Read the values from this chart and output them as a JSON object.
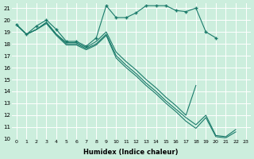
{
  "xlabel": "Humidex (Indice chaleur)",
  "bg_color": "#cceedd",
  "grid_color": "#ffffff",
  "line_color": "#1a7a6a",
  "xlim": [
    -0.5,
    23.5
  ],
  "ylim": [
    10,
    21.4
  ],
  "xticks": [
    0,
    1,
    2,
    3,
    4,
    5,
    6,
    7,
    8,
    9,
    10,
    11,
    12,
    13,
    14,
    15,
    16,
    17,
    18,
    19,
    20,
    21,
    22,
    23
  ],
  "yticks": [
    10,
    11,
    12,
    13,
    14,
    15,
    16,
    17,
    18,
    19,
    20,
    21
  ],
  "series": [
    {
      "x": [
        0,
        1,
        2,
        3,
        4,
        5,
        6,
        7,
        8,
        9,
        10,
        11,
        12,
        13,
        14,
        15,
        16,
        17,
        18,
        19,
        20,
        21,
        22,
        23
      ],
      "y": [
        19.6,
        18.8,
        19.5,
        20.0,
        19.2,
        18.2,
        18.2,
        17.8,
        18.5,
        21.2,
        20.2,
        20.2,
        20.6,
        21.2,
        21.2,
        21.2,
        20.8,
        20.7,
        21.0,
        19.0,
        18.5,
        null,
        null,
        null
      ],
      "marker": true
    },
    {
      "x": [
        0,
        1,
        2,
        3,
        4,
        5,
        6,
        7,
        8,
        9,
        10,
        11,
        12,
        13,
        14,
        15,
        16,
        17,
        18,
        19,
        20,
        21,
        22,
        23
      ],
      "y": [
        19.6,
        18.8,
        19.2,
        19.8,
        18.8,
        18.1,
        18.1,
        17.7,
        18.2,
        19.0,
        17.3,
        16.5,
        15.8,
        15.0,
        14.3,
        13.5,
        12.8,
        12.0,
        14.5,
        null,
        null,
        null,
        null,
        null
      ],
      "marker": false
    },
    {
      "x": [
        0,
        1,
        2,
        3,
        4,
        5,
        6,
        7,
        8,
        9,
        10,
        11,
        12,
        13,
        14,
        15,
        16,
        17,
        18,
        19,
        20,
        21,
        22,
        23
      ],
      "y": [
        19.6,
        18.8,
        19.2,
        19.8,
        18.8,
        18.0,
        18.0,
        17.6,
        18.0,
        18.8,
        17.0,
        16.2,
        15.5,
        14.7,
        14.0,
        13.2,
        12.5,
        11.8,
        11.2,
        12.0,
        10.3,
        10.2,
        10.8,
        null
      ],
      "marker": false
    },
    {
      "x": [
        0,
        1,
        2,
        3,
        4,
        5,
        6,
        7,
        8,
        9,
        10,
        11,
        12,
        13,
        14,
        15,
        16,
        17,
        18,
        19,
        20,
        21,
        22,
        23
      ],
      "y": [
        19.6,
        18.8,
        19.2,
        19.7,
        18.7,
        17.9,
        17.9,
        17.5,
        17.9,
        18.7,
        16.8,
        16.0,
        15.3,
        14.5,
        13.8,
        13.0,
        12.3,
        11.5,
        10.9,
        11.8,
        10.2,
        10.1,
        10.6,
        null
      ],
      "marker": false
    }
  ]
}
